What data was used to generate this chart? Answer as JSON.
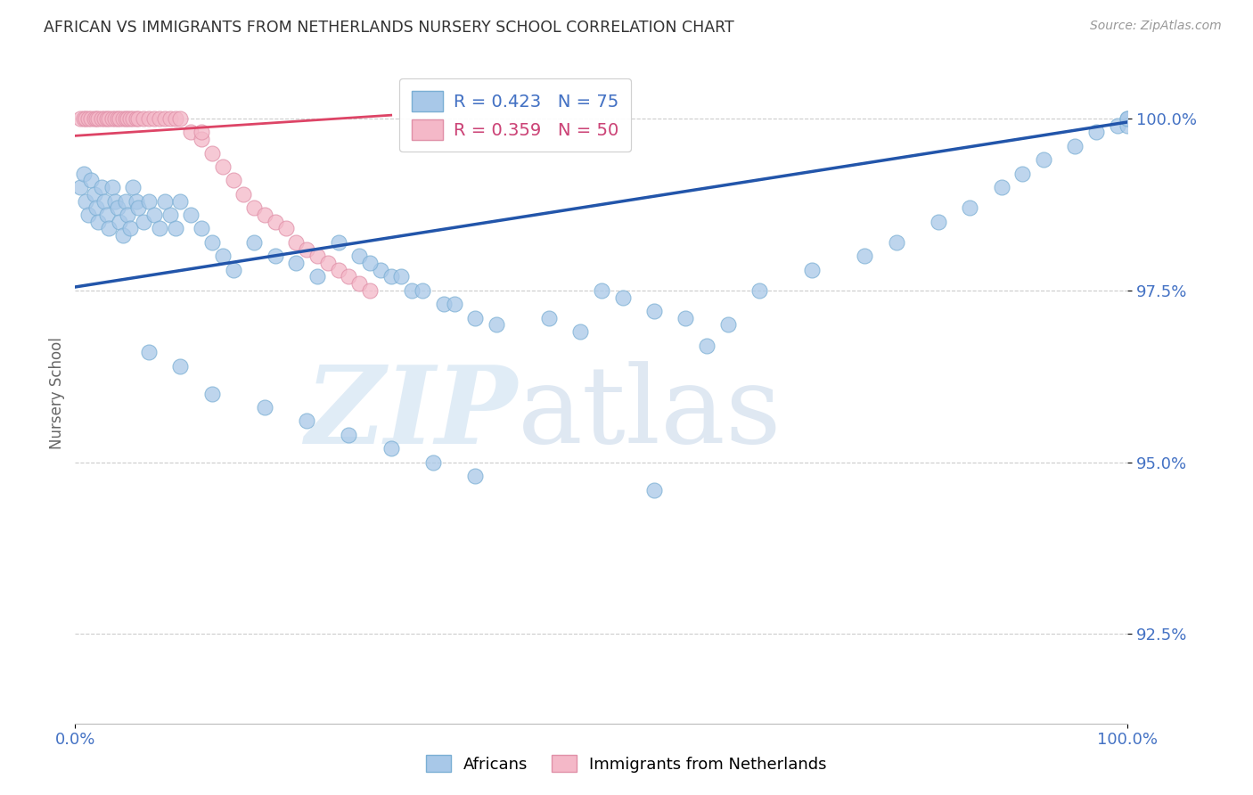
{
  "title": "AFRICAN VS IMMIGRANTS FROM NETHERLANDS NURSERY SCHOOL CORRELATION CHART",
  "source": "Source: ZipAtlas.com",
  "ylabel": "Nursery School",
  "xlim": [
    0.0,
    1.0
  ],
  "ylim": [
    0.912,
    1.008
  ],
  "yticks": [
    0.925,
    0.95,
    0.975,
    1.0
  ],
  "ytick_labels": [
    "92.5%",
    "95.0%",
    "97.5%",
    "100.0%"
  ],
  "xticks": [
    0.0,
    1.0
  ],
  "xtick_labels": [
    "0.0%",
    "100.0%"
  ],
  "watermark_zip": "ZIP",
  "watermark_atlas": "atlas",
  "legend_blue_r": 0.423,
  "legend_blue_n": 75,
  "legend_pink_r": 0.359,
  "legend_pink_n": 50,
  "blue_color": "#a8c8e8",
  "blue_edge_color": "#7bafd4",
  "pink_color": "#f4b8c8",
  "pink_edge_color": "#e090a8",
  "line_blue_color": "#2255aa",
  "line_pink_color": "#dd4466",
  "axis_color": "#4472c4",
  "grid_color": "#cccccc",
  "background_color": "#ffffff",
  "blue_scatter_x": [
    0.005,
    0.008,
    0.01,
    0.012,
    0.015,
    0.018,
    0.02,
    0.022,
    0.025,
    0.028,
    0.03,
    0.032,
    0.035,
    0.038,
    0.04,
    0.042,
    0.045,
    0.048,
    0.05,
    0.052,
    0.055,
    0.058,
    0.06,
    0.065,
    0.07,
    0.075,
    0.08,
    0.085,
    0.09,
    0.095,
    0.1,
    0.11,
    0.12,
    0.13,
    0.14,
    0.15,
    0.17,
    0.19,
    0.21,
    0.23,
    0.25,
    0.27,
    0.29,
    0.3,
    0.32,
    0.35,
    0.38,
    0.4,
    0.5,
    0.52,
    0.55,
    0.58,
    0.62,
    0.65,
    0.7,
    0.75,
    0.78,
    0.82,
    0.85,
    0.88,
    0.9,
    0.92,
    0.95,
    0.97,
    0.99,
    1.0,
    1.0,
    1.0,
    0.28,
    0.31,
    0.33,
    0.36,
    0.45,
    0.48,
    0.6
  ],
  "blue_scatter_y": [
    0.99,
    0.992,
    0.988,
    0.986,
    0.991,
    0.989,
    0.987,
    0.985,
    0.99,
    0.988,
    0.986,
    0.984,
    0.99,
    0.988,
    0.987,
    0.985,
    0.983,
    0.988,
    0.986,
    0.984,
    0.99,
    0.988,
    0.987,
    0.985,
    0.988,
    0.986,
    0.984,
    0.988,
    0.986,
    0.984,
    0.988,
    0.986,
    0.984,
    0.982,
    0.98,
    0.978,
    0.982,
    0.98,
    0.979,
    0.977,
    0.982,
    0.98,
    0.978,
    0.977,
    0.975,
    0.973,
    0.971,
    0.97,
    0.975,
    0.974,
    0.972,
    0.971,
    0.97,
    0.975,
    0.978,
    0.98,
    0.982,
    0.985,
    0.987,
    0.99,
    0.992,
    0.994,
    0.996,
    0.998,
    0.999,
    1.0,
    0.999,
    1.0,
    0.979,
    0.977,
    0.975,
    0.973,
    0.971,
    0.969,
    0.967
  ],
  "blue_scatter_y_outliers": [
    0.966,
    0.964,
    0.96,
    0.958,
    0.956,
    0.954,
    0.952,
    0.95,
    0.948,
    0.946
  ],
  "blue_scatter_x_outliers": [
    0.07,
    0.1,
    0.13,
    0.18,
    0.22,
    0.26,
    0.3,
    0.34,
    0.38,
    0.55
  ],
  "pink_scatter_x": [
    0.005,
    0.008,
    0.01,
    0.012,
    0.015,
    0.018,
    0.02,
    0.022,
    0.025,
    0.028,
    0.03,
    0.032,
    0.035,
    0.038,
    0.04,
    0.042,
    0.045,
    0.048,
    0.05,
    0.052,
    0.055,
    0.058,
    0.06,
    0.065,
    0.07,
    0.075,
    0.08,
    0.085,
    0.09,
    0.095,
    0.1,
    0.11,
    0.12,
    0.13,
    0.14,
    0.15,
    0.16,
    0.17,
    0.18,
    0.19,
    0.2,
    0.21,
    0.22,
    0.23,
    0.24,
    0.25,
    0.26,
    0.27,
    0.28,
    0.12
  ],
  "pink_scatter_y": [
    1.0,
    1.0,
    1.0,
    1.0,
    1.0,
    1.0,
    1.0,
    1.0,
    1.0,
    1.0,
    1.0,
    1.0,
    1.0,
    1.0,
    1.0,
    1.0,
    1.0,
    1.0,
    1.0,
    1.0,
    1.0,
    1.0,
    1.0,
    1.0,
    1.0,
    1.0,
    1.0,
    1.0,
    1.0,
    1.0,
    1.0,
    0.998,
    0.997,
    0.995,
    0.993,
    0.991,
    0.989,
    0.987,
    0.986,
    0.985,
    0.984,
    0.982,
    0.981,
    0.98,
    0.979,
    0.978,
    0.977,
    0.976,
    0.975,
    0.998
  ],
  "blue_line_x": [
    0.0,
    1.0
  ],
  "blue_line_y": [
    0.9755,
    0.9995
  ],
  "pink_line_x": [
    0.0,
    0.3
  ],
  "pink_line_y": [
    0.9975,
    1.0005
  ]
}
